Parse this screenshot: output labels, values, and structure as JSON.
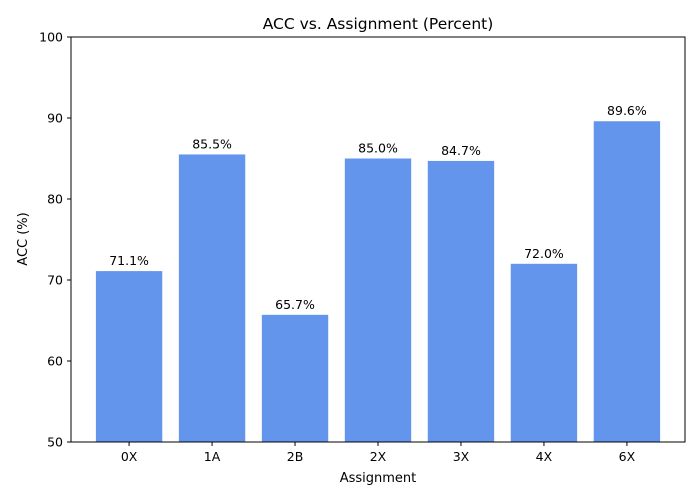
{
  "chart_data": {
    "type": "bar",
    "title": "ACC vs. Assignment (Percent)",
    "xlabel": "Assignment",
    "ylabel": "ACC (%)",
    "categories": [
      "0X",
      "1A",
      "2B",
      "2X",
      "3X",
      "4X",
      "6X"
    ],
    "values": [
      71.1,
      85.5,
      65.7,
      85.0,
      84.7,
      72.0,
      89.6
    ],
    "data_labels": [
      "71.1%",
      "85.5%",
      "65.7%",
      "85.0%",
      "84.7%",
      "72.0%",
      "89.6%"
    ],
    "ylim": [
      50,
      100
    ],
    "yticks": [
      50,
      60,
      70,
      80,
      90,
      100
    ],
    "grid": false,
    "legend": "none",
    "bar_color": "#6495ED"
  }
}
